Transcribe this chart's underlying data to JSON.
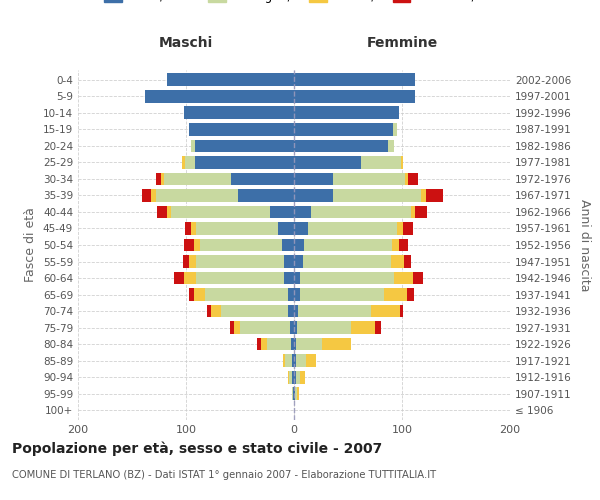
{
  "age_groups": [
    "100+",
    "95-99",
    "90-94",
    "85-89",
    "80-84",
    "75-79",
    "70-74",
    "65-69",
    "60-64",
    "55-59",
    "50-54",
    "45-49",
    "40-44",
    "35-39",
    "30-34",
    "25-29",
    "20-24",
    "15-19",
    "10-14",
    "5-9",
    "0-4"
  ],
  "birth_years": [
    "≤ 1906",
    "1907-1911",
    "1912-1916",
    "1917-1921",
    "1922-1926",
    "1927-1931",
    "1932-1936",
    "1937-1941",
    "1942-1946",
    "1947-1951",
    "1952-1956",
    "1957-1961",
    "1962-1966",
    "1967-1971",
    "1972-1976",
    "1977-1981",
    "1982-1986",
    "1987-1991",
    "1992-1996",
    "1997-2001",
    "2002-2006"
  ],
  "males": {
    "celibi": [
      0,
      1,
      2,
      2,
      3,
      4,
      6,
      6,
      9,
      9,
      11,
      15,
      22,
      52,
      58,
      92,
      92,
      97,
      102,
      138,
      118
    ],
    "coniugati": [
      0,
      1,
      3,
      6,
      22,
      46,
      62,
      76,
      82,
      82,
      76,
      76,
      92,
      76,
      62,
      9,
      3,
      0,
      0,
      0,
      0
    ],
    "vedovi": [
      0,
      0,
      1,
      2,
      6,
      6,
      9,
      11,
      11,
      6,
      6,
      4,
      4,
      4,
      3,
      3,
      0,
      0,
      0,
      0,
      0
    ],
    "divorziati": [
      0,
      0,
      0,
      0,
      3,
      3,
      4,
      4,
      9,
      6,
      9,
      6,
      9,
      9,
      5,
      0,
      0,
      0,
      0,
      0,
      0
    ]
  },
  "females": {
    "nubili": [
      0,
      1,
      2,
      2,
      2,
      3,
      4,
      6,
      6,
      8,
      9,
      13,
      16,
      36,
      36,
      62,
      87,
      92,
      97,
      112,
      112
    ],
    "coniugate": [
      0,
      2,
      4,
      9,
      24,
      50,
      67,
      77,
      87,
      82,
      82,
      82,
      92,
      82,
      67,
      37,
      6,
      3,
      0,
      0,
      0
    ],
    "vedove": [
      0,
      2,
      4,
      9,
      27,
      22,
      27,
      22,
      17,
      12,
      6,
      6,
      4,
      4,
      3,
      2,
      0,
      0,
      0,
      0,
      0
    ],
    "divorziate": [
      0,
      0,
      0,
      0,
      0,
      6,
      3,
      6,
      9,
      6,
      9,
      9,
      11,
      16,
      9,
      0,
      0,
      0,
      0,
      0,
      0
    ]
  },
  "colors": {
    "celibi": "#3d6fa8",
    "coniugati": "#c8d9a0",
    "vedovi": "#f5c842",
    "divorziati": "#cc1111"
  },
  "title": "Popolazione per età, sesso e stato civile - 2007",
  "subtitle": "COMUNE DI TERLANO (BZ) - Dati ISTAT 1° gennaio 2007 - Elaborazione TUTTITALIA.IT",
  "xlabel_maschi": "Maschi",
  "xlabel_femmine": "Femmine",
  "ylabel_left": "Fasce di età",
  "ylabel_right": "Anni di nascita",
  "xlim": 200,
  "bg_color": "#ffffff",
  "grid_color": "#cccccc"
}
